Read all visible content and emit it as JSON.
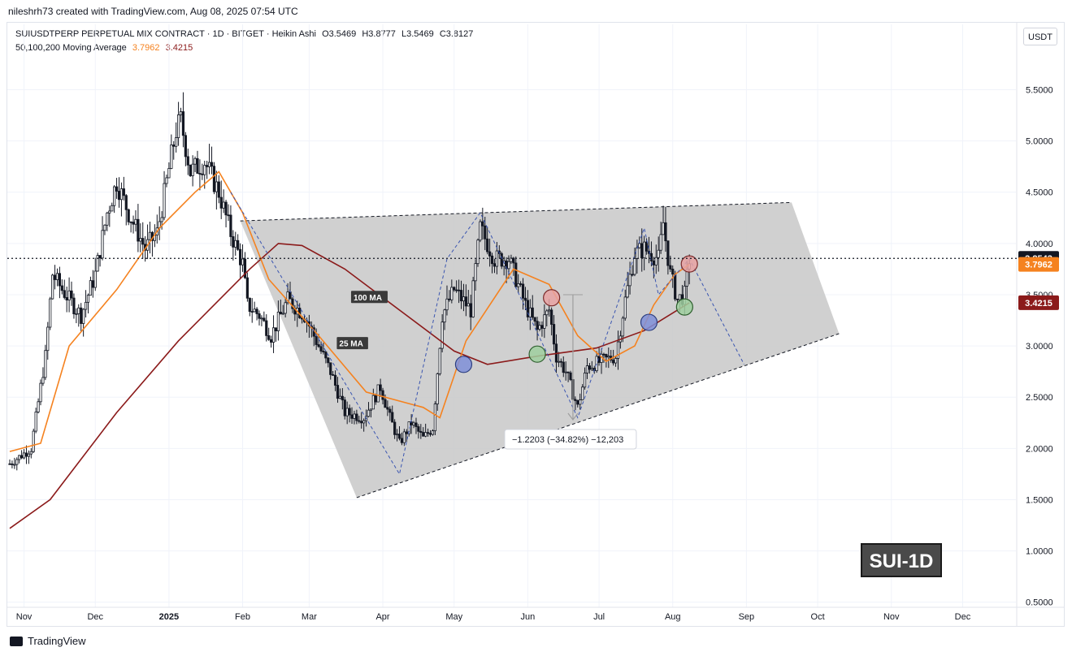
{
  "header": {
    "author_line": "nileshrh73 created with TradingView.com, Aug 08, 2025 07:54 UTC"
  },
  "legend": {
    "symbol_line": [
      "SUIUSDTPERP PERPETUAL MIX CONTRACT · 1D · BITGET · Heikin Ashi",
      "O3.5469",
      "H3.8777",
      "L3.5469",
      "C3.8127"
    ],
    "ma_label": "50,100,200 Moving Average",
    "ma_value_1": "3.7962",
    "ma_value_2": "3.4215"
  },
  "currency_button": "USDT",
  "footer": {
    "brand": "TradingView"
  },
  "colors": {
    "ma_short": "#f5821f",
    "ma_long": "#8b1a1a",
    "candle": "#131722",
    "pattern_fill": "#c8c8c8",
    "zigzag": "#3a55b0"
  },
  "chart_data": {
    "type": "candlestick",
    "y_axis": {
      "ticks": [
        "5.5000",
        "5.0000",
        "4.5000",
        "4.0000",
        "3.5000",
        "3.0000",
        "2.5000",
        "2.0000",
        "1.5000",
        "1.0000",
        "0.5000"
      ],
      "range": [
        0.45,
        5.9
      ]
    },
    "x_axis": {
      "ticks": [
        {
          "label": "Nov",
          "date": "2024-11-01"
        },
        {
          "label": "Dec",
          "date": "2024-12-01"
        },
        {
          "label": "2025",
          "date": "2025-01-01",
          "bold": true
        },
        {
          "label": "Feb",
          "date": "2025-02-01"
        },
        {
          "label": "Mar",
          "date": "2025-03-01"
        },
        {
          "label": "Apr",
          "date": "2025-04-01"
        },
        {
          "label": "May",
          "date": "2025-05-01"
        },
        {
          "label": "Jun",
          "date": "2025-06-01"
        },
        {
          "label": "Jul",
          "date": "2025-07-01"
        },
        {
          "label": "Aug",
          "date": "2025-08-01"
        },
        {
          "label": "Sep",
          "date": "2025-09-01"
        },
        {
          "label": "Oct",
          "date": "2025-10-01"
        },
        {
          "label": "Nov",
          "date": "2025-11-01"
        },
        {
          "label": "Dec",
          "date": "2025-12-01"
        }
      ],
      "range": [
        "2024-10-26",
        "2025-12-20"
      ]
    },
    "price_anchors": [
      [
        "2024-10-26",
        1.85
      ],
      [
        "2024-11-04",
        2.0
      ],
      [
        "2024-11-10",
        2.9
      ],
      [
        "2024-11-13",
        3.7
      ],
      [
        "2024-11-17",
        3.55
      ],
      [
        "2024-11-25",
        3.3
      ],
      [
        "2024-12-01",
        3.7
      ],
      [
        "2024-12-06",
        4.3
      ],
      [
        "2024-12-10",
        4.6
      ],
      [
        "2024-12-15",
        4.3
      ],
      [
        "2024-12-22",
        3.95
      ],
      [
        "2024-12-27",
        4.1
      ],
      [
        "2025-01-04",
        5.1
      ],
      [
        "2025-01-06",
        5.2
      ],
      [
        "2025-01-10",
        4.7
      ],
      [
        "2025-01-16",
        4.8
      ],
      [
        "2025-01-22",
        4.5
      ],
      [
        "2025-01-27",
        4.1
      ],
      [
        "2025-02-01",
        3.8
      ],
      [
        "2025-02-03",
        3.4
      ],
      [
        "2025-02-08",
        3.3
      ],
      [
        "2025-02-13",
        3.1
      ],
      [
        "2025-02-20",
        3.45
      ],
      [
        "2025-02-27",
        3.3
      ],
      [
        "2025-03-04",
        3.05
      ],
      [
        "2025-03-10",
        2.75
      ],
      [
        "2025-03-16",
        2.35
      ],
      [
        "2025-03-24",
        2.3
      ],
      [
        "2025-03-31",
        2.6
      ],
      [
        "2025-04-04",
        2.3
      ],
      [
        "2025-04-08",
        2.05
      ],
      [
        "2025-04-13",
        2.25
      ],
      [
        "2025-04-18",
        2.1
      ],
      [
        "2025-04-22",
        2.2
      ],
      [
        "2025-04-26",
        3.3
      ],
      [
        "2025-05-01",
        3.55
      ],
      [
        "2025-05-08",
        3.35
      ],
      [
        "2025-05-12",
        4.15
      ],
      [
        "2025-05-18",
        3.85
      ],
      [
        "2025-05-24",
        3.85
      ],
      [
        "2025-05-31",
        3.4
      ],
      [
        "2025-06-05",
        3.15
      ],
      [
        "2025-06-10",
        3.35
      ],
      [
        "2025-06-13",
        2.9
      ],
      [
        "2025-06-17",
        2.75
      ],
      [
        "2025-06-22",
        2.4
      ],
      [
        "2025-06-26",
        2.8
      ],
      [
        "2025-07-02",
        2.85
      ],
      [
        "2025-07-08",
        2.9
      ],
      [
        "2025-07-12",
        3.45
      ],
      [
        "2025-07-16",
        3.9
      ],
      [
        "2025-07-20",
        3.95
      ],
      [
        "2025-07-26",
        3.85
      ],
      [
        "2025-07-28",
        4.2
      ],
      [
        "2025-07-31",
        3.7
      ],
      [
        "2025-08-03",
        3.45
      ],
      [
        "2025-08-06",
        3.5
      ],
      [
        "2025-08-08",
        3.85
      ]
    ],
    "moving_averages": {
      "short": [
        [
          "2024-10-26",
          1.97
        ],
        [
          "2024-11-08",
          2.05
        ],
        [
          "2024-11-20",
          3.0
        ],
        [
          "2024-12-10",
          3.55
        ],
        [
          "2024-12-28",
          4.15
        ],
        [
          "2025-01-12",
          4.5
        ],
        [
          "2025-01-22",
          4.7
        ],
        [
          "2025-02-01",
          4.3
        ],
        [
          "2025-02-12",
          3.65
        ],
        [
          "2025-03-05",
          3.1
        ],
        [
          "2025-03-25",
          2.55
        ],
        [
          "2025-04-18",
          2.4
        ],
        [
          "2025-04-25",
          2.3
        ],
        [
          "2025-05-06",
          3.05
        ],
        [
          "2025-05-26",
          3.75
        ],
        [
          "2025-06-10",
          3.6
        ],
        [
          "2025-06-22",
          3.1
        ],
        [
          "2025-07-04",
          2.85
        ],
        [
          "2025-07-16",
          3.0
        ],
        [
          "2025-07-24",
          3.4
        ],
        [
          "2025-08-02",
          3.7
        ],
        [
          "2025-08-08",
          3.7962
        ]
      ],
      "long": [
        [
          "2024-10-26",
          1.22
        ],
        [
          "2024-11-12",
          1.5
        ],
        [
          "2024-12-10",
          2.35
        ],
        [
          "2025-01-05",
          3.05
        ],
        [
          "2025-02-04",
          3.75
        ],
        [
          "2025-02-16",
          4.0
        ],
        [
          "2025-02-26",
          3.98
        ],
        [
          "2025-03-16",
          3.75
        ],
        [
          "2025-04-08",
          3.35
        ],
        [
          "2025-05-01",
          2.95
        ],
        [
          "2025-05-15",
          2.82
        ],
        [
          "2025-06-05",
          2.9
        ],
        [
          "2025-06-30",
          2.98
        ],
        [
          "2025-07-20",
          3.15
        ],
        [
          "2025-08-08",
          3.4215
        ]
      ]
    },
    "price_labels": [
      {
        "value": 3.8543,
        "text": "3.8543",
        "color": "#131722"
      },
      {
        "value": 3.7962,
        "text": "3.7962",
        "color": "#f5821f"
      },
      {
        "value": 3.4215,
        "text": "3.4215",
        "color": "#8b1a1a"
      }
    ],
    "current_price": 3.8543,
    "annotations": {
      "ma_tags": [
        {
          "text": "100 MA",
          "date": "2025-03-20",
          "value": 3.45
        },
        {
          "text": "25 MA",
          "date": "2025-03-14",
          "value": 3.0
        }
      ],
      "measure_text": "−1.2203 (−34.82%) −12,203",
      "measure_at": {
        "date": "2025-06-20",
        "from": 3.5,
        "to": 2.28
      },
      "watermark": "SUI-1D",
      "pattern": {
        "upper": [
          [
            "2025-01-31",
            4.22
          ],
          [
            "2025-09-20",
            4.4
          ]
        ],
        "lower": [
          [
            "2025-03-21",
            1.52
          ],
          [
            "2025-10-10",
            3.12
          ]
        ],
        "left": [
          [
            "2025-01-31",
            4.22
          ],
          [
            "2025-03-21",
            1.52
          ]
        ],
        "right": [
          [
            "2025-09-20",
            4.4
          ],
          [
            "2025-10-10",
            3.12
          ]
        ]
      },
      "zigzag": [
        [
          "2025-01-27",
          4.5
        ],
        [
          "2025-04-08",
          1.75
        ],
        [
          "2025-04-28",
          3.85
        ],
        [
          "2025-05-12",
          4.3
        ],
        [
          "2025-06-22",
          2.3
        ],
        [
          "2025-07-20",
          4.15
        ],
        [
          "2025-07-26",
          3.5
        ],
        [
          "2025-08-08",
          3.85
        ],
        [
          "2025-08-31",
          2.82
        ]
      ],
      "circles": [
        {
          "date": "2025-05-05",
          "value": 2.82,
          "kind": "blue"
        },
        {
          "date": "2025-06-05",
          "value": 2.92,
          "kind": "green"
        },
        {
          "date": "2025-06-11",
          "value": 3.47,
          "kind": "red"
        },
        {
          "date": "2025-07-22",
          "value": 3.23,
          "kind": "blue"
        },
        {
          "date": "2025-08-06",
          "value": 3.38,
          "kind": "green"
        },
        {
          "date": "2025-08-08",
          "value": 3.8,
          "kind": "red"
        }
      ]
    }
  }
}
